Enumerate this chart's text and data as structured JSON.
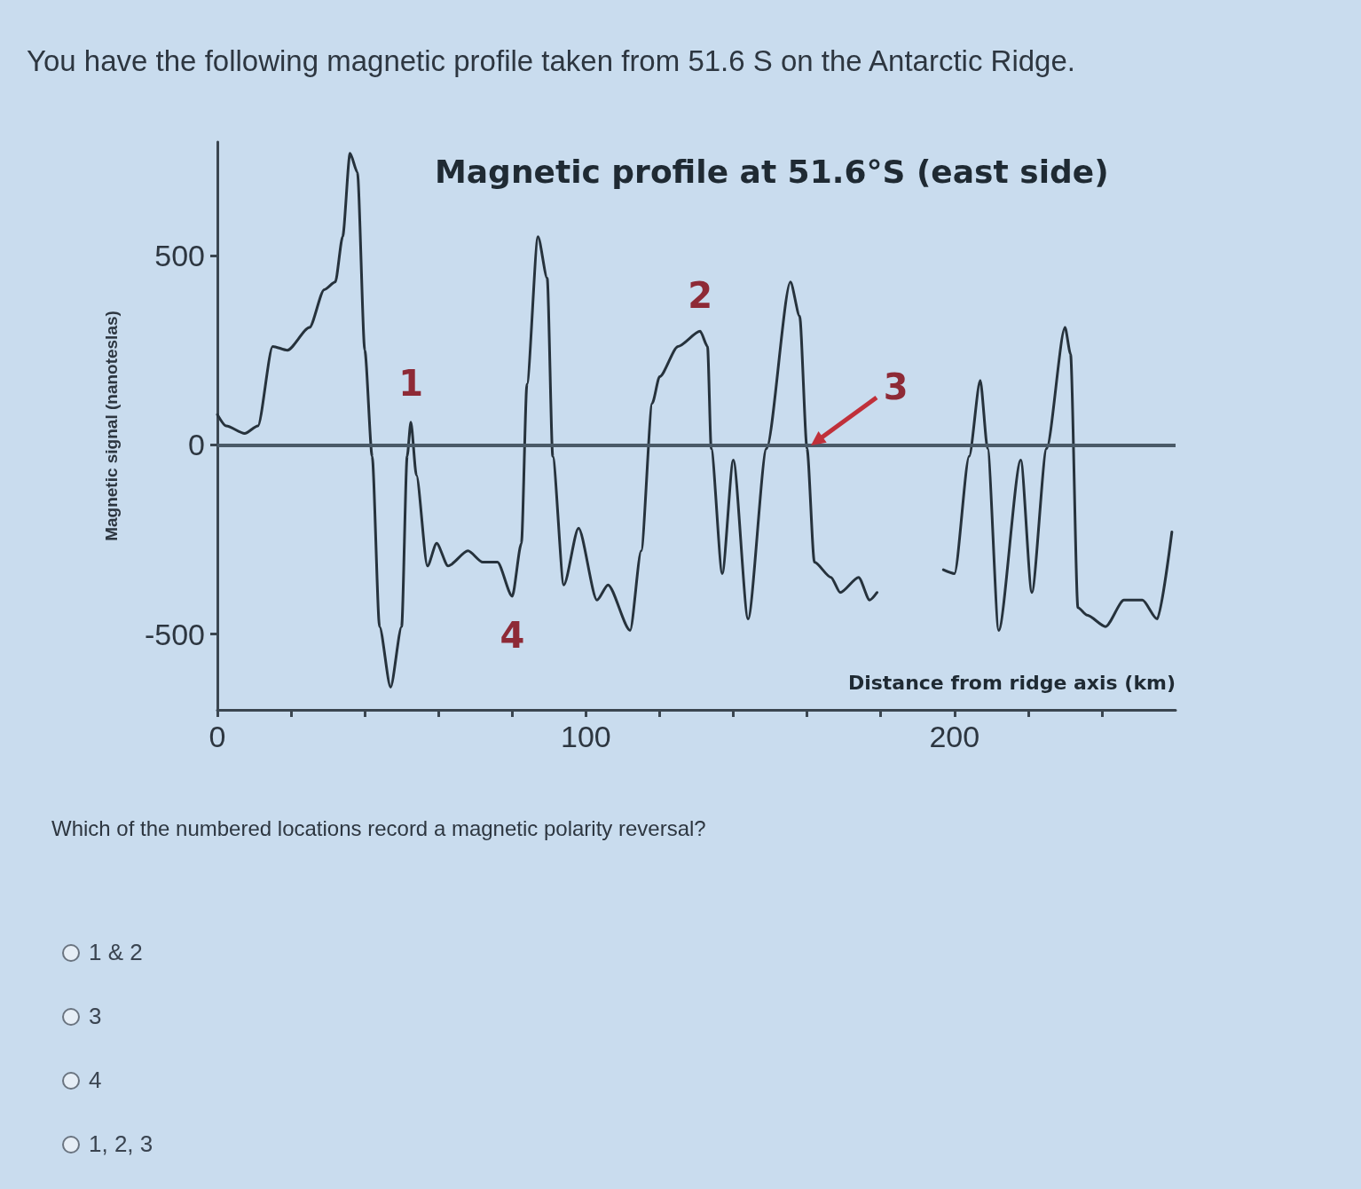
{
  "chart_data": {
    "type": "line",
    "title": "Magnetic profile at 51.6°S (east side)",
    "xlabel": "Distance from ridge axis (km)",
    "ylabel": "Magnetic signal (nanoteslas)",
    "x": [
      0,
      2.4,
      7.4,
      11,
      15,
      19,
      25,
      29,
      32,
      34,
      36,
      38,
      40,
      42,
      44,
      47,
      50,
      51.5,
      52.5,
      54,
      57,
      59.5,
      62.6,
      68,
      72,
      76,
      80,
      82.5,
      84,
      87,
      89.5,
      91,
      94,
      98,
      103,
      106,
      112,
      115,
      118,
      120,
      125,
      131,
      133,
      134,
      137,
      140,
      144,
      149,
      155.5,
      158,
      160,
      162,
      166.5,
      169,
      174,
      177,
      179,
      188,
      197,
      200,
      204,
      207,
      209,
      212,
      218,
      221,
      225,
      230,
      231.5,
      233.5,
      236,
      241,
      246,
      251,
      255,
      259
    ],
    "series": [
      {
        "color": "#26323c",
        "values": [
          80,
          50,
          30,
          50,
          260,
          250,
          310,
          410,
          430,
          550,
          770,
          720,
          250,
          -30,
          -480,
          -640,
          -480,
          -30,
          60,
          -80,
          -320,
          -260,
          -320,
          -280,
          -310,
          -310,
          -400,
          -260,
          160,
          550,
          440,
          -30,
          -370,
          -220,
          -410,
          -370,
          -490,
          -280,
          110,
          180,
          260,
          300,
          260,
          -10,
          -340,
          -40,
          -460,
          -10,
          430,
          340,
          -10,
          -310,
          -350,
          -390,
          -350,
          -410,
          -390,
          null,
          -330,
          -340,
          -30,
          170,
          -10,
          -490,
          -40,
          -390,
          -10,
          310,
          240,
          -430,
          -450,
          -480,
          -410,
          -410,
          -460,
          -230
        ]
      }
    ],
    "xlim": [
      0,
      260
    ],
    "xticks": [
      0,
      {
        "value": 20,
        "label": null
      },
      {
        "value": 40,
        "label": null
      },
      {
        "value": 60,
        "label": null
      },
      {
        "value": 80,
        "label": null
      },
      100,
      {
        "value": 120,
        "label": null
      },
      {
        "value": 140,
        "label": null
      },
      {
        "value": 160,
        "label": null
      },
      {
        "value": 180,
        "label": null
      },
      200,
      {
        "value": 220,
        "label": null
      },
      {
        "value": 240,
        "label": null
      }
    ],
    "ylim": [
      -700,
      800
    ],
    "yticks": [
      -500,
      0,
      500
    ],
    "ref_lines": [
      {
        "axis": "y",
        "value": 0,
        "label": null,
        "color": "#4a5a68"
      }
    ],
    "marker": "none",
    "grid": false,
    "annotations": [
      "You have the following magnetic profile taken from 51.6 S on the Antarctic Ridge.",
      {
        "text": "1",
        "x": 52.5,
        "y": 60
      },
      {
        "text": "2",
        "x": 131,
        "y": 300
      },
      {
        "text": "3",
        "x": 160,
        "y": -10
      },
      {
        "text": "4",
        "x": 80,
        "y": -400
      },
      "Which of the numbered locations record a magnetic polarity reversal?",
      "1 & 2",
      "3",
      "4",
      "1, 2, 3"
    ]
  }
}
